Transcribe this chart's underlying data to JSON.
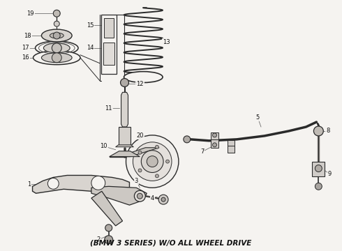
{
  "title": "(BMW 3 SERIES) W/O ALL WHEEL DRIVE",
  "bg_color": "#f0eeeb",
  "line_color": "#2a2a2a",
  "title_fontsize": 7.5,
  "fig_bg": "#f5f3f0"
}
